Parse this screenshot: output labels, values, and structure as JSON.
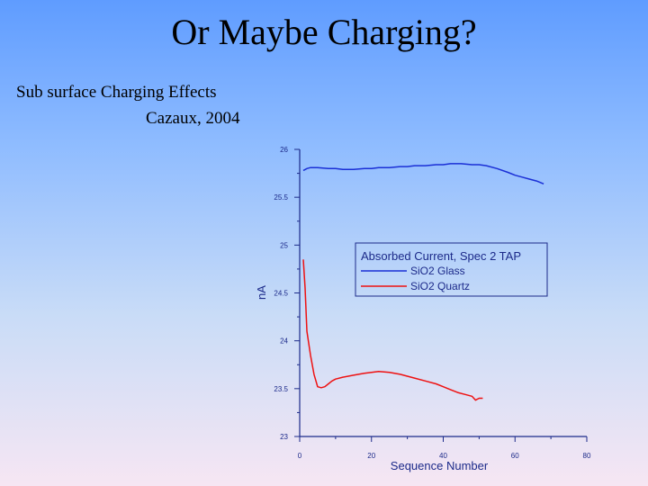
{
  "slide": {
    "title": "Or Maybe Charging?",
    "subtitle_line1": "Sub surface Charging Effects",
    "subtitle_line2": "Cazaux, 2004"
  },
  "chart_data": {
    "type": "line",
    "title": "",
    "xlabel": "Sequence Number",
    "ylabel": "nA",
    "xlim": [
      0,
      80
    ],
    "ylim": [
      23,
      26
    ],
    "x_ticks": [
      0,
      20,
      40,
      60,
      80
    ],
    "y_ticks": [
      23,
      23.5,
      24,
      24.5,
      25,
      25.5,
      26
    ],
    "grid": false,
    "legend": {
      "title": "Absorbed Current, Spec 2 TAP",
      "placement": "upper-right"
    },
    "series": [
      {
        "name": "SiO2 Glass",
        "color": "#1a2fd6",
        "x": [
          1,
          2,
          3,
          5,
          8,
          10,
          12,
          15,
          18,
          20,
          22,
          25,
          28,
          30,
          32,
          35,
          38,
          40,
          42,
          45,
          48,
          50,
          52,
          55,
          58,
          60,
          62,
          64,
          66,
          68
        ],
        "y": [
          25.78,
          25.8,
          25.81,
          25.81,
          25.8,
          25.8,
          25.79,
          25.79,
          25.8,
          25.8,
          25.81,
          25.81,
          25.82,
          25.82,
          25.83,
          25.83,
          25.84,
          25.84,
          25.85,
          25.85,
          25.84,
          25.84,
          25.83,
          25.8,
          25.76,
          25.73,
          25.71,
          25.69,
          25.67,
          25.64
        ]
      },
      {
        "name": "SiO2 Quartz",
        "color": "#ee1111",
        "x": [
          1,
          1.5,
          2,
          3,
          4,
          5,
          6,
          7,
          8,
          9,
          10,
          12,
          15,
          18,
          20,
          22,
          25,
          28,
          30,
          32,
          35,
          38,
          40,
          42,
          44,
          46,
          48,
          49,
          50,
          51
        ],
        "y": [
          24.85,
          24.55,
          24.1,
          23.85,
          23.65,
          23.52,
          23.51,
          23.52,
          23.55,
          23.58,
          23.6,
          23.62,
          23.64,
          23.66,
          23.67,
          23.68,
          23.67,
          23.65,
          23.63,
          23.61,
          23.58,
          23.55,
          23.52,
          23.49,
          23.46,
          23.44,
          23.42,
          23.38,
          23.4,
          23.4
        ]
      }
    ]
  }
}
